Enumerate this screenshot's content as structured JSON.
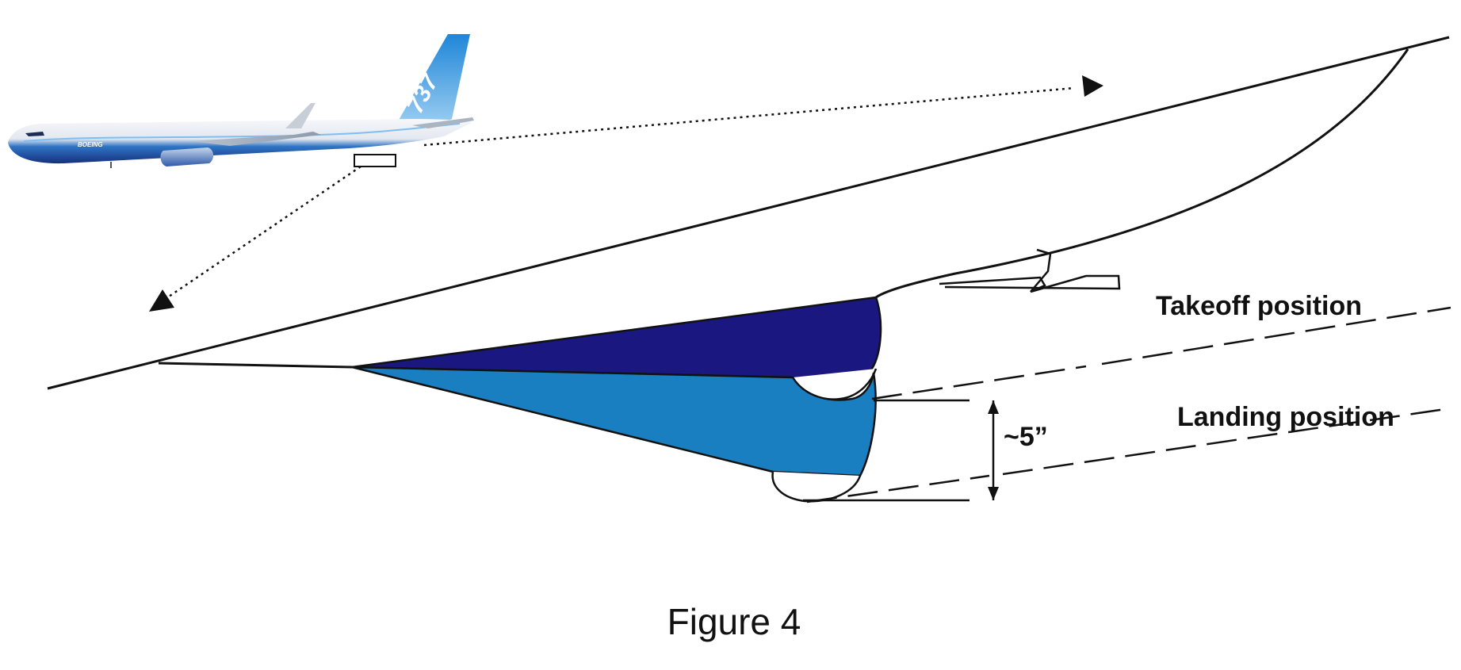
{
  "labels": {
    "takeoff": "Takeoff position",
    "landing": "Landing position",
    "dimension": "~5”"
  },
  "caption": "Figure 4",
  "aircraft": {
    "tail_number": "737",
    "brand": "BOEING"
  },
  "colors": {
    "takeoff_slat": "#1a1880",
    "landing_slat": "#1a7fc0",
    "outline": "#111111",
    "fuselage_top": "#f2f4f8",
    "fuselage_belly": "#1f3f95",
    "tail": "#2a8fd8"
  },
  "icons": {
    "aircraft": "airplane-icon",
    "arrow": "arrowhead-icon"
  }
}
